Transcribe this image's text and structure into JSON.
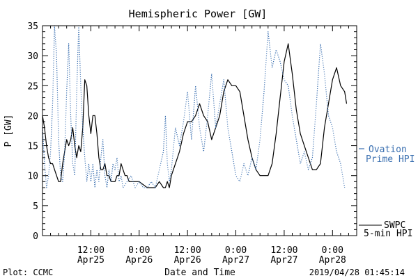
{
  "footer": {
    "plot_credit": "Plot: CCMC",
    "timestamp": "2019/04/28 01:45:14"
  },
  "colors": {
    "swpc_line": "#000000",
    "ovation_line": "#3a6fb0",
    "frame": "#000000"
  },
  "chart_data": {
    "type": "line",
    "title": "Hemispheric Power [GW]",
    "xlabel": "Date and Time",
    "ylabel": "P [GW]",
    "ylim": [
      0,
      35
    ],
    "xlim_hours": [
      0,
      78
    ],
    "yticks": [
      0,
      5,
      10,
      15,
      20,
      25,
      30,
      35
    ],
    "xticks": [
      {
        "hour": 12,
        "time": "12:00",
        "date": "Apr25"
      },
      {
        "hour": 24,
        "time": "0:00",
        "date": "Apr26"
      },
      {
        "hour": 36,
        "time": "12:00",
        "date": "Apr26"
      },
      {
        "hour": 48,
        "time": "0:00",
        "date": "Apr27"
      },
      {
        "hour": 60,
        "time": "12:00",
        "date": "Apr27"
      },
      {
        "hour": 72,
        "time": "0:00",
        "date": "Apr28"
      }
    ],
    "grid": false,
    "legend_position": "right",
    "series": [
      {
        "name": "SWPC 5-min HPI",
        "legend": [
          "SWPC",
          "5-min HPI"
        ],
        "style": "solid",
        "points": [
          [
            0,
            20
          ],
          [
            0.5,
            18
          ],
          [
            1,
            15
          ],
          [
            1.5,
            13
          ],
          [
            2,
            12
          ],
          [
            2.5,
            12
          ],
          [
            3,
            11
          ],
          [
            3.5,
            10
          ],
          [
            4,
            9
          ],
          [
            4.5,
            9
          ],
          [
            5,
            12
          ],
          [
            5.5,
            14
          ],
          [
            6,
            16
          ],
          [
            6.5,
            15
          ],
          [
            7,
            16
          ],
          [
            7.5,
            18
          ],
          [
            8,
            15
          ],
          [
            8.5,
            13
          ],
          [
            9,
            15
          ],
          [
            9.5,
            14
          ],
          [
            10,
            18
          ],
          [
            10.5,
            26
          ],
          [
            11,
            25
          ],
          [
            11.5,
            20
          ],
          [
            12,
            17
          ],
          [
            12.5,
            20
          ],
          [
            13,
            20
          ],
          [
            13.5,
            17
          ],
          [
            14,
            13
          ],
          [
            14.5,
            11
          ],
          [
            15,
            11
          ],
          [
            15.5,
            12
          ],
          [
            16,
            10
          ],
          [
            16.5,
            10
          ],
          [
            17,
            9
          ],
          [
            17.5,
            9
          ],
          [
            18,
            9
          ],
          [
            18.5,
            10
          ],
          [
            19,
            10
          ],
          [
            19.5,
            12
          ],
          [
            20,
            11
          ],
          [
            20.5,
            10
          ],
          [
            21,
            10
          ],
          [
            21.5,
            9
          ],
          [
            22,
            9
          ],
          [
            24,
            9
          ],
          [
            26,
            8
          ],
          [
            28,
            8
          ],
          [
            29,
            9
          ],
          [
            30,
            8
          ],
          [
            30.5,
            8
          ],
          [
            31,
            9
          ],
          [
            31.5,
            8
          ],
          [
            32,
            10
          ],
          [
            33,
            12
          ],
          [
            34,
            14
          ],
          [
            35,
            17
          ],
          [
            36,
            19
          ],
          [
            37,
            19
          ],
          [
            38,
            20
          ],
          [
            39,
            22
          ],
          [
            40,
            20
          ],
          [
            41,
            19
          ],
          [
            42,
            16
          ],
          [
            43,
            18
          ],
          [
            44,
            20
          ],
          [
            45,
            24
          ],
          [
            46,
            26
          ],
          [
            47,
            25
          ],
          [
            48,
            25
          ],
          [
            49,
            24
          ],
          [
            50,
            20
          ],
          [
            51,
            16
          ],
          [
            52,
            13
          ],
          [
            53,
            11
          ],
          [
            54,
            10
          ],
          [
            56,
            10
          ],
          [
            57,
            12
          ],
          [
            58,
            17
          ],
          [
            59,
            23
          ],
          [
            60,
            29
          ],
          [
            61,
            32
          ],
          [
            62,
            27
          ],
          [
            63,
            21
          ],
          [
            64,
            17
          ],
          [
            65,
            15
          ],
          [
            66,
            13
          ],
          [
            67,
            11
          ],
          [
            68,
            11
          ],
          [
            69,
            12
          ],
          [
            70,
            18
          ],
          [
            71,
            22
          ],
          [
            72,
            26
          ],
          [
            73,
            28
          ],
          [
            74,
            25
          ],
          [
            75,
            24
          ],
          [
            75.5,
            22
          ]
        ]
      },
      {
        "name": "Ovation Prime HPI",
        "legend": [
          "Ovation",
          "Prime HPI"
        ],
        "style": "dotted",
        "points": [
          [
            0,
            18
          ],
          [
            0.5,
            12
          ],
          [
            1,
            8
          ],
          [
            1.5,
            10
          ],
          [
            2,
            14
          ],
          [
            2.5,
            22
          ],
          [
            3,
            35
          ],
          [
            3.5,
            30
          ],
          [
            4,
            16
          ],
          [
            4.5,
            10
          ],
          [
            5,
            9
          ],
          [
            5.5,
            14
          ],
          [
            6,
            24
          ],
          [
            6.5,
            32
          ],
          [
            7,
            20
          ],
          [
            7.5,
            12
          ],
          [
            8,
            10
          ],
          [
            8.5,
            24
          ],
          [
            9,
            35
          ],
          [
            9.5,
            25
          ],
          [
            10,
            18
          ],
          [
            10.5,
            13
          ],
          [
            11,
            9
          ],
          [
            11.5,
            12
          ],
          [
            12,
            9
          ],
          [
            12.5,
            12
          ],
          [
            13,
            8
          ],
          [
            13.5,
            11
          ],
          [
            14,
            9
          ],
          [
            14.5,
            13
          ],
          [
            15,
            16
          ],
          [
            15.5,
            10
          ],
          [
            16,
            8
          ],
          [
            16.5,
            11
          ],
          [
            17,
            9
          ],
          [
            17.5,
            12
          ],
          [
            18,
            11
          ],
          [
            18.5,
            13
          ],
          [
            19,
            9
          ],
          [
            19.5,
            10
          ],
          [
            20,
            8
          ],
          [
            21,
            9
          ],
          [
            22,
            10
          ],
          [
            23,
            8
          ],
          [
            24,
            9
          ],
          [
            25,
            8
          ],
          [
            26,
            8
          ],
          [
            27,
            9
          ],
          [
            28,
            8
          ],
          [
            29,
            11
          ],
          [
            30,
            14
          ],
          [
            30.5,
            20
          ],
          [
            31,
            12
          ],
          [
            31.5,
            9
          ],
          [
            32,
            11
          ],
          [
            33,
            18
          ],
          [
            34,
            15
          ],
          [
            35,
            19
          ],
          [
            36,
            24
          ],
          [
            37,
            16
          ],
          [
            38,
            25
          ],
          [
            39,
            18
          ],
          [
            40,
            14
          ],
          [
            41,
            20
          ],
          [
            42,
            27
          ],
          [
            43,
            18
          ],
          [
            44,
            22
          ],
          [
            45,
            26
          ],
          [
            46,
            18
          ],
          [
            47,
            14
          ],
          [
            48,
            10
          ],
          [
            49,
            9
          ],
          [
            50,
            12
          ],
          [
            51,
            10
          ],
          [
            52,
            13
          ],
          [
            53,
            11
          ],
          [
            54,
            16
          ],
          [
            55,
            24
          ],
          [
            56,
            34
          ],
          [
            57,
            28
          ],
          [
            58,
            31
          ],
          [
            59,
            29
          ],
          [
            60,
            26
          ],
          [
            61,
            25
          ],
          [
            62,
            20
          ],
          [
            63,
            16
          ],
          [
            64,
            12
          ],
          [
            65,
            14
          ],
          [
            66,
            11
          ],
          [
            67,
            13
          ],
          [
            68,
            22
          ],
          [
            69,
            32
          ],
          [
            70,
            27
          ],
          [
            71,
            20
          ],
          [
            72,
            18
          ],
          [
            73,
            14
          ],
          [
            74,
            12
          ],
          [
            75,
            8
          ]
        ]
      }
    ]
  }
}
